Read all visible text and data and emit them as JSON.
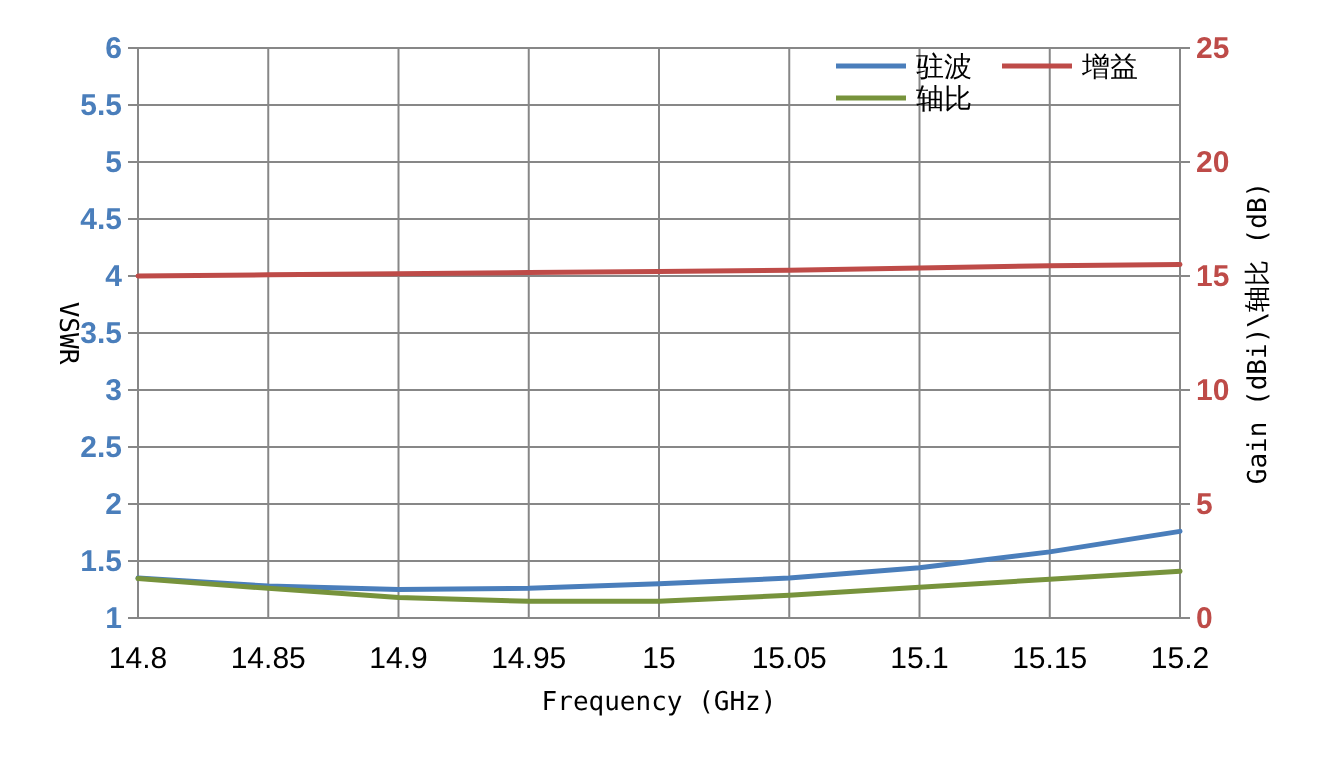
{
  "chart_data": {
    "type": "line",
    "xlabel": "Frequency (GHz)",
    "ylabel": "VSWR",
    "y2label": "Gain (dBi)\\轴比 (dB)",
    "x": [
      14.8,
      14.85,
      14.9,
      14.95,
      15,
      15.05,
      15.1,
      15.15,
      15.2
    ],
    "series": [
      {
        "name": "驻波",
        "color": "#4a7ebb",
        "values": [
          1.35,
          1.28,
          1.25,
          1.26,
          1.3,
          1.35,
          1.44,
          1.58,
          1.76
        ]
      },
      {
        "name": "增益",
        "color": "#be4b48",
        "axis": "y2",
        "values": [
          15.0,
          15.05,
          15.1,
          15.15,
          15.2,
          15.25,
          15.35,
          15.45,
          15.5
        ]
      },
      {
        "name": "轴比",
        "color": "#77933c",
        "axis": "y2",
        "values": [
          1.73,
          1.3,
          0.9,
          0.73,
          0.73,
          1.0,
          1.35,
          1.7,
          2.05
        ]
      }
    ],
    "xlim": [
      14.8,
      15.2
    ],
    "xticks": [
      14.8,
      14.85,
      14.9,
      14.95,
      15,
      15.05,
      15.1,
      15.15,
      15.2
    ],
    "ylim": [
      1,
      6
    ],
    "yticks": [
      1,
      1.5,
      2,
      2.5,
      3,
      3.5,
      4,
      4.5,
      5,
      5.5,
      6
    ],
    "y2lim": [
      0,
      25
    ],
    "y2ticks": [
      0,
      5,
      10,
      15,
      20,
      25
    ],
    "grid": true,
    "legend": "top right",
    "marker": "none",
    "line_style": "solid"
  }
}
